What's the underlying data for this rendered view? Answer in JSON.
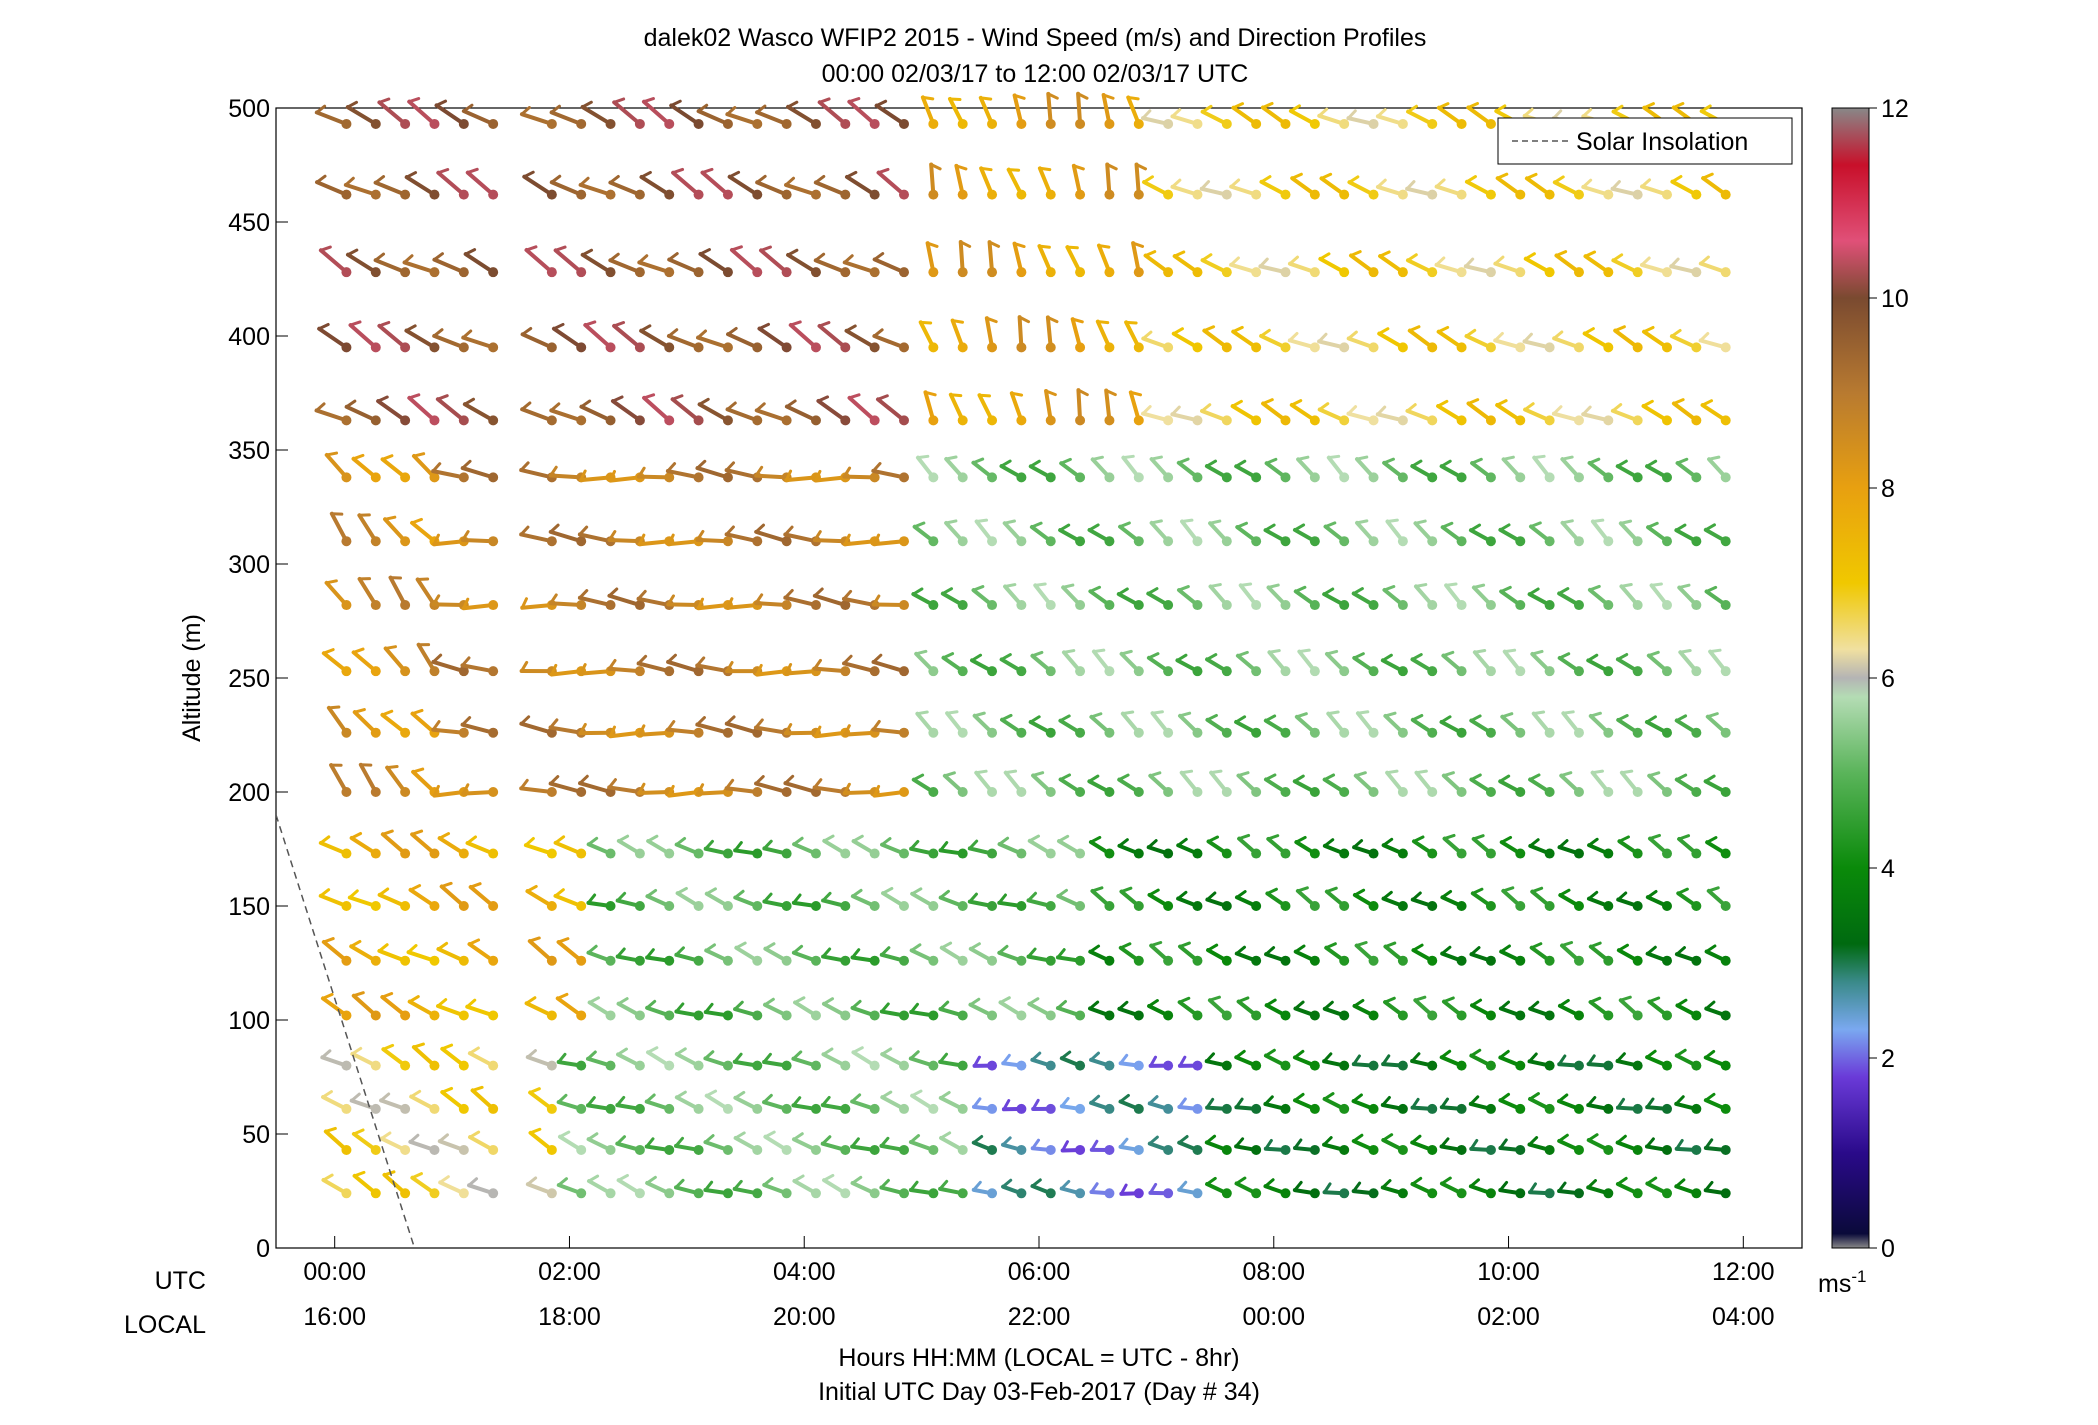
{
  "chart_data": {
    "type": "scatter",
    "subtype": "wind-barb-profile",
    "title": "dalek02 Wasco WFIP2 2015 - Wind Speed (m/s) and Direction Profiles",
    "subtitle": "00:00 02/03/17 to 12:00 02/03/17  UTC",
    "ylabel": "Altitude (m)",
    "xlabel_line1": "Hours HH:MM  (LOCAL = UTC - 8hr)",
    "xlabel_line2": "Initial UTC Day 03-Feb-2017 (Day # 34)",
    "row_label_utc": "UTC",
    "row_label_local": "LOCAL",
    "xlim_hours": [
      -0.5,
      12.5
    ],
    "ylim": [
      0,
      500
    ],
    "ytick_values": [
      0,
      50,
      100,
      150,
      200,
      250,
      300,
      350,
      400,
      450,
      500
    ],
    "ytick_labels": [
      "0",
      "50",
      "100",
      "150",
      "200",
      "250",
      "300",
      "350",
      "400",
      "450",
      "500"
    ],
    "xtick_hours": [
      0,
      2,
      4,
      6,
      8,
      10,
      12
    ],
    "xtick_labels_utc": [
      "00:00",
      "02:00",
      "04:00",
      "06:00",
      "08:00",
      "10:00",
      "12:00"
    ],
    "xtick_labels_local": [
      "16:00",
      "18:00",
      "20:00",
      "22:00",
      "00:00",
      "02:00",
      "04:00"
    ],
    "grid": false,
    "legend": {
      "placement": "top-right",
      "entries": [
        "Solar Insolation"
      ]
    },
    "solar_insolation_line": {
      "style": "dashed",
      "color": "#555555",
      "points": [
        [
          -0.5,
          190
        ],
        [
          0.68,
          0
        ]
      ]
    },
    "colorbar": {
      "range": [
        0,
        12
      ],
      "tick_values": [
        0,
        2,
        4,
        6,
        8,
        10,
        12
      ],
      "tick_labels": [
        "0",
        "2",
        "4",
        "6",
        "8",
        "10",
        "12"
      ],
      "unit_label": "ms",
      "unit_exponent": "-1",
      "color_stops": [
        {
          "value": 0,
          "color": "#888888"
        },
        {
          "value": 0.15,
          "color": "#0a0a3a"
        },
        {
          "value": 1,
          "color": "#2a0a8a"
        },
        {
          "value": 1.8,
          "color": "#6a3ad8"
        },
        {
          "value": 2.3,
          "color": "#7aa8f0"
        },
        {
          "value": 2.8,
          "color": "#3a8a8a"
        },
        {
          "value": 3.2,
          "color": "#006a10"
        },
        {
          "value": 4,
          "color": "#0a8a0a"
        },
        {
          "value": 5,
          "color": "#5ab45a"
        },
        {
          "value": 5.8,
          "color": "#b4dcb4"
        },
        {
          "value": 6,
          "color": "#b4b4b4"
        },
        {
          "value": 6.3,
          "color": "#f0e0a0"
        },
        {
          "value": 7,
          "color": "#f0c800"
        },
        {
          "value": 8,
          "color": "#e8a010"
        },
        {
          "value": 9,
          "color": "#b87a30"
        },
        {
          "value": 10,
          "color": "#7a4a30"
        },
        {
          "value": 10.6,
          "color": "#e05078"
        },
        {
          "value": 11.4,
          "color": "#c8102a"
        },
        {
          "value": 12,
          "color": "#888888"
        }
      ]
    },
    "times_hours": [
      0.1,
      0.35,
      0.6,
      0.85,
      1.1,
      1.35,
      1.85,
      2.1,
      2.35,
      2.6,
      2.85,
      3.1,
      3.35,
      3.6,
      3.85,
      4.1,
      4.35,
      4.6,
      4.85,
      5.1,
      5.35,
      5.6,
      5.85,
      6.1,
      6.35,
      6.6,
      6.85,
      7.1,
      7.35,
      7.6,
      7.85,
      8.1,
      8.35,
      8.6,
      8.85,
      9.1,
      9.35,
      9.6,
      9.85,
      10.1,
      10.35,
      10.6,
      10.85,
      11.1,
      11.35,
      11.6,
      11.85
    ],
    "altitudes_m": [
      24,
      43,
      61,
      80,
      102,
      126,
      150,
      173,
      200,
      226,
      253,
      282,
      310,
      338,
      363,
      395,
      428,
      462,
      493
    ],
    "speed_bands_mps": [
      {
        "altitude_max": 100,
        "hour_start": 0,
        "hour_end": 2.0,
        "speed": 6.6,
        "direction_deg": 300
      },
      {
        "altitude_max": 100,
        "hour_start": 2.0,
        "hour_end": 5.6,
        "speed": 5.2,
        "direction_deg": 290
      },
      {
        "altitude_max": 100,
        "hour_start": 5.6,
        "hour_end": 7.4,
        "speed": 2.4,
        "direction_deg": 280
      },
      {
        "altitude_max": 100,
        "hour_start": 7.4,
        "hour_end": 12,
        "speed": 3.6,
        "direction_deg": 285
      },
      {
        "altitude_max": 190,
        "hour_start": 0,
        "hour_end": 2.2,
        "speed": 7.6,
        "direction_deg": 300
      },
      {
        "altitude_max": 190,
        "hour_start": 2.2,
        "hour_end": 6.4,
        "speed": 5.0,
        "direction_deg": 290
      },
      {
        "altitude_max": 190,
        "hour_start": 6.4,
        "hour_end": 12,
        "speed": 4.0,
        "direction_deg": 300
      },
      {
        "altitude_max": 360,
        "hour_start": 0,
        "hour_end": 1.0,
        "speed": 8.4,
        "direction_deg": 320
      },
      {
        "altitude_max": 360,
        "hour_start": 1.0,
        "hour_end": 5.0,
        "speed": 8.8,
        "direction_deg": 275
      },
      {
        "altitude_max": 360,
        "hour_start": 5.0,
        "hour_end": 12,
        "speed": 5.2,
        "direction_deg": 310
      },
      {
        "altitude_max": 500,
        "hour_start": 0,
        "hour_end": 5.0,
        "speed": 9.8,
        "direction_deg": 300
      },
      {
        "altitude_max": 500,
        "hour_start": 5.0,
        "hour_end": 7.0,
        "speed": 8.0,
        "direction_deg": 345
      },
      {
        "altitude_max": 500,
        "hour_start": 7.0,
        "hour_end": 12,
        "speed": 6.8,
        "direction_deg": 295
      }
    ]
  }
}
